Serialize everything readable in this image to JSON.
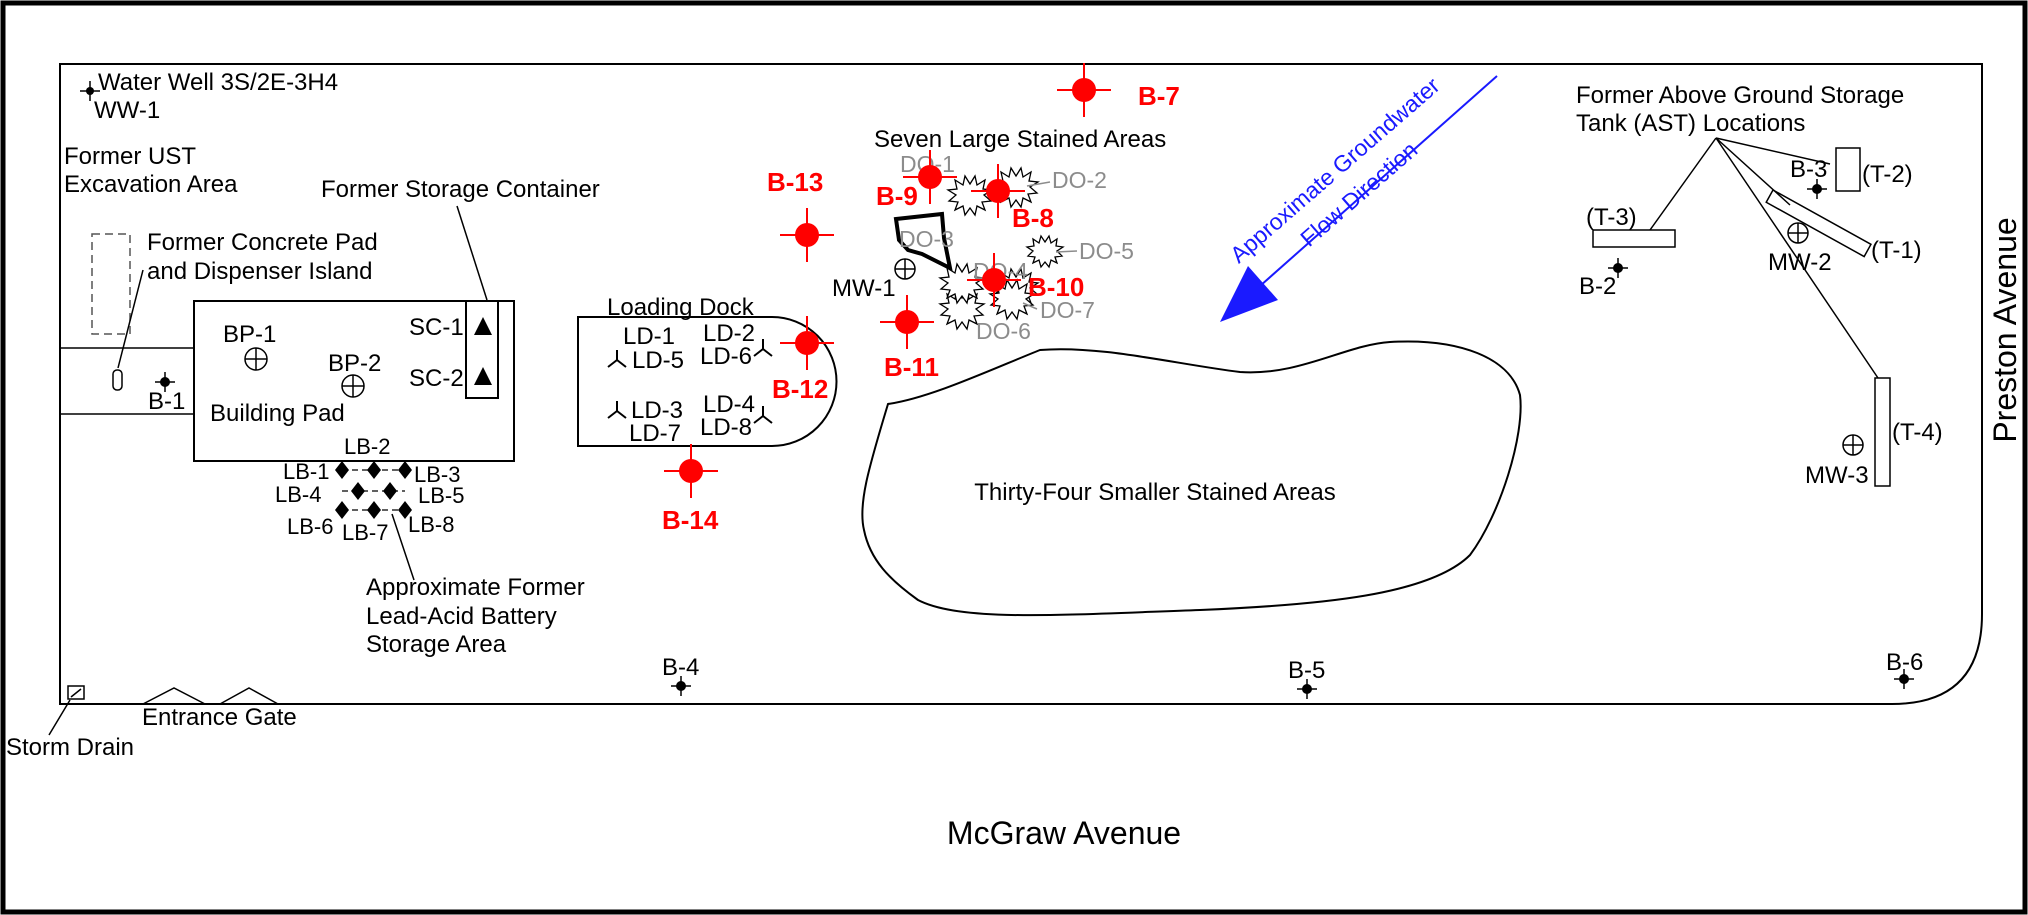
{
  "streets": {
    "south": "McGraw Avenue",
    "east": "Preston Avenue"
  },
  "features": {
    "water_well_title": "Water Well 3S/2E-3H4",
    "water_well_id": "WW-1",
    "former_ust_line1": "Former UST",
    "former_ust_line2": "Excavation Area",
    "concrete_pad_line1": "Former Concrete Pad",
    "concrete_pad_line2": "and Dispenser Island",
    "storage_container": "Former Storage Container",
    "building_pad": "Building Pad",
    "loading_dock": "Loading Dock",
    "seven_large": "Seven Large Stained Areas",
    "thirty_four": "Thirty-Four Smaller Stained Areas",
    "battery_line1": "Approximate Former",
    "battery_line2": "Lead-Acid Battery",
    "battery_line3": "Storage Area",
    "ast_line1": "Former Above Ground Storage",
    "ast_line2": "Tank (AST) Locations",
    "gw_line1": "Approximate Groundwater",
    "gw_line2": "Flow Direction",
    "storm_drain": "Storm Drain",
    "entrance_gate": "Entrance Gate"
  },
  "borings_black": [
    "B-1",
    "B-2",
    "B-3",
    "B-4",
    "B-5",
    "B-6"
  ],
  "borings_red": [
    "B-7",
    "B-8",
    "B-9",
    "B-10",
    "B-11",
    "B-12",
    "B-13",
    "B-14"
  ],
  "monitoring_wells": [
    "MW-1",
    "MW-2",
    "MW-3"
  ],
  "building_probes": [
    "BP-1",
    "BP-2"
  ],
  "storage_containers": [
    "SC-1",
    "SC-2"
  ],
  "loading_dock_samples": [
    "LD-1",
    "LD-2",
    "LD-3",
    "LD-4",
    "LD-5",
    "LD-6",
    "LD-7",
    "LD-8"
  ],
  "lead_battery_samples": [
    "LB-1",
    "LB-2",
    "LB-3",
    "LB-4",
    "LB-5",
    "LB-6",
    "LB-7",
    "LB-8"
  ],
  "drum_outs": [
    "DO-1",
    "DO-2",
    "DO-3",
    "DO-4",
    "DO-5",
    "DO-6",
    "DO-7"
  ],
  "tanks": [
    "(T-1)",
    "(T-2)",
    "(T-3)",
    "(T-4)"
  ],
  "colors": {
    "red_boring": "#ff0000",
    "flow_arrow": "#1a1aff",
    "gray_label": "#8c8c8c"
  },
  "icons": {
    "red_boring": "red-circle-crosshair-icon",
    "black_boring": "black-dot-crosshair-icon",
    "monitoring_well": "circled-cross-icon",
    "loading_dock_sample": "tripod-icon",
    "battery_sample": "diamond-icon",
    "storage_container": "triangle-icon",
    "stain": "starburst-icon",
    "flow": "arrow-icon"
  }
}
